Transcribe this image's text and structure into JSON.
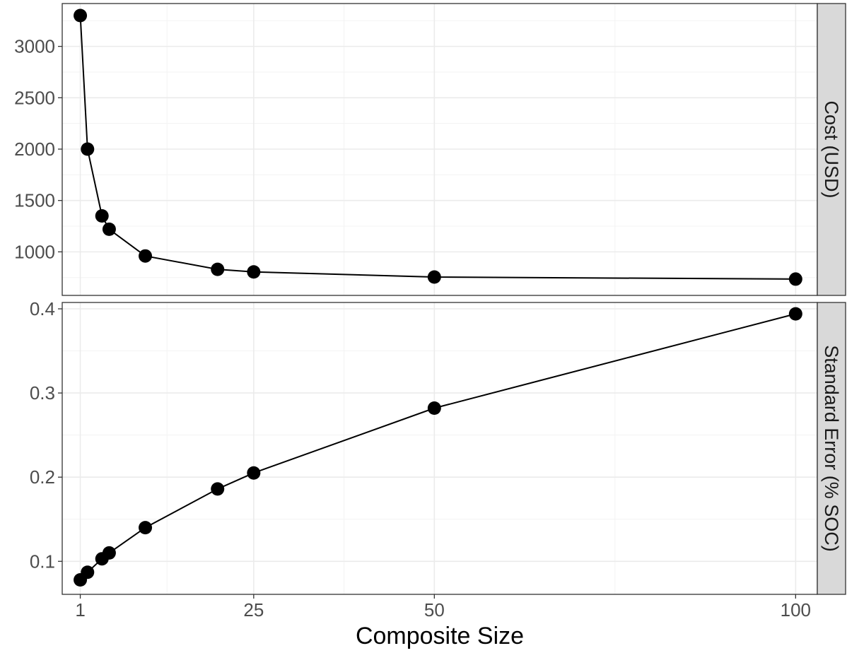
{
  "chart_data": {
    "type": "line",
    "xlabel": "Composite Size",
    "x_ticks": [
      1,
      25,
      50,
      100
    ],
    "xlim": [
      -1.5,
      103
    ],
    "grid": true,
    "marker": "filled-circle",
    "panels": [
      {
        "strip_label": "Cost (USD)",
        "ylim": [
          700,
          3300
        ],
        "y_ticks": [
          1000,
          1500,
          2000,
          2500,
          3000
        ],
        "x": [
          1,
          2,
          4,
          5,
          10,
          20,
          25,
          50,
          100
        ],
        "values": [
          3300,
          2000,
          1350,
          1220,
          960,
          830,
          805,
          755,
          735
        ]
      },
      {
        "strip_label": "Standard Error (% SOC)",
        "ylim": [
          0.07,
          0.4
        ],
        "y_ticks": [
          0.1,
          0.2,
          0.3,
          0.4
        ],
        "x": [
          1,
          2,
          4,
          5,
          10,
          20,
          25,
          50,
          100
        ],
        "values": [
          0.078,
          0.087,
          0.103,
          0.11,
          0.14,
          0.186,
          0.205,
          0.282,
          0.394
        ]
      }
    ]
  }
}
